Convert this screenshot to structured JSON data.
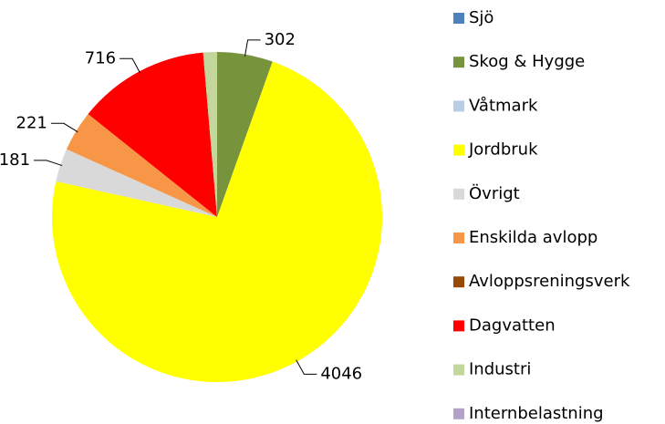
{
  "chart_data": {
    "type": "pie",
    "categories": [
      "Sjö",
      "Skog & Hygge",
      "Våtmark",
      "Jordbruk",
      "Övrigt",
      "Enskilda avlopp",
      "Avloppsreningsverk",
      "Dagvatten",
      "Industri",
      "Internbelastning"
    ],
    "values": [
      0,
      302,
      0,
      4046,
      181,
      221,
      0,
      716,
      75,
      0
    ],
    "colors": [
      "#4f81bd",
      "#77933c",
      "#b9cde5",
      "#ffff00",
      "#d9d9d9",
      "#f79646",
      "#984807",
      "#ff0000",
      "#c3d69b",
      "#b3a2c7"
    ],
    "legend": "right"
  }
}
